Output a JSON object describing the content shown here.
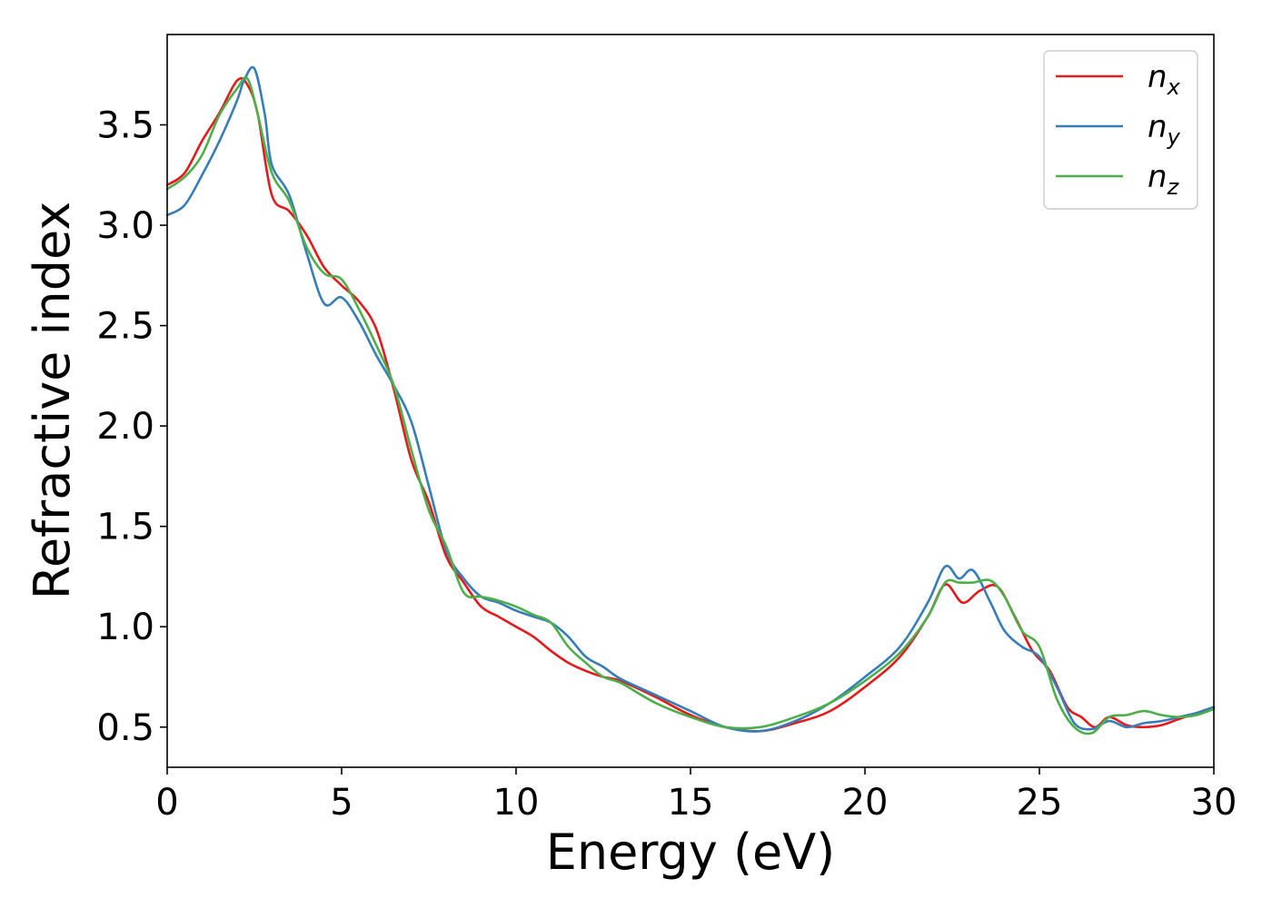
{
  "chart_data": {
    "type": "line",
    "title": "",
    "xlabel": "Energy (eV)",
    "ylabel": "Refractive index",
    "xlim": [
      0,
      30
    ],
    "ylim": [
      0.3,
      3.95
    ],
    "xticks": [
      0,
      5,
      10,
      15,
      20,
      25,
      30
    ],
    "xtick_labels": [
      "0",
      "5",
      "10",
      "15",
      "20",
      "25",
      "30"
    ],
    "yticks": [
      0.5,
      1.0,
      1.5,
      2.0,
      2.5,
      3.0,
      3.5
    ],
    "ytick_labels": [
      "0.5",
      "1.0",
      "1.5",
      "2.0",
      "2.5",
      "3.0",
      "3.5"
    ],
    "grid": false,
    "legend_position": "top-right",
    "series": [
      {
        "name": "n",
        "subscript": "x",
        "color": "#e41a1c",
        "x": [
          0,
          0.5,
          1.0,
          1.5,
          2.0,
          2.3,
          2.6,
          3.0,
          3.5,
          4.0,
          4.5,
          5.0,
          5.5,
          6.0,
          6.5,
          7.0,
          7.5,
          8.0,
          8.5,
          9.0,
          9.5,
          10.0,
          10.5,
          11.0,
          11.5,
          12.0,
          12.5,
          13.0,
          14.0,
          15.0,
          16.0,
          17.0,
          18.0,
          19.0,
          20.0,
          21.0,
          21.8,
          22.3,
          22.8,
          23.3,
          23.8,
          24.3,
          24.8,
          25.3,
          25.8,
          26.2,
          26.6,
          27.0,
          27.5,
          28.0,
          28.5,
          29.0,
          29.5,
          30.0
        ],
        "y": [
          3.2,
          3.26,
          3.42,
          3.56,
          3.72,
          3.7,
          3.55,
          3.15,
          3.07,
          2.95,
          2.79,
          2.7,
          2.62,
          2.48,
          2.18,
          1.83,
          1.62,
          1.35,
          1.22,
          1.1,
          1.05,
          1.0,
          0.95,
          0.88,
          0.82,
          0.78,
          0.75,
          0.73,
          0.65,
          0.56,
          0.5,
          0.48,
          0.52,
          0.58,
          0.7,
          0.85,
          1.05,
          1.21,
          1.12,
          1.18,
          1.2,
          1.05,
          0.88,
          0.78,
          0.6,
          0.55,
          0.5,
          0.55,
          0.51,
          0.5,
          0.51,
          0.54,
          0.57,
          0.6
        ]
      },
      {
        "name": "n",
        "subscript": "y",
        "color": "#377eb8",
        "x": [
          0,
          0.5,
          1.0,
          1.5,
          2.0,
          2.2,
          2.5,
          2.8,
          3.0,
          3.5,
          4.0,
          4.5,
          5.0,
          5.5,
          6.0,
          6.5,
          7.0,
          7.5,
          8.0,
          8.5,
          9.0,
          9.5,
          10.0,
          10.5,
          11.0,
          11.5,
          12.0,
          12.5,
          13.0,
          14.0,
          15.0,
          16.0,
          17.0,
          18.0,
          19.0,
          20.0,
          21.0,
          21.8,
          22.3,
          22.7,
          23.1,
          23.6,
          24.0,
          24.5,
          25.0,
          25.5,
          26.0,
          26.5,
          27.0,
          27.5,
          28.0,
          28.5,
          29.0,
          29.5,
          30.0
        ],
        "y": [
          3.05,
          3.1,
          3.25,
          3.42,
          3.62,
          3.72,
          3.78,
          3.55,
          3.3,
          3.15,
          2.86,
          2.61,
          2.64,
          2.52,
          2.35,
          2.2,
          2.02,
          1.7,
          1.38,
          1.24,
          1.15,
          1.12,
          1.08,
          1.05,
          1.02,
          0.95,
          0.85,
          0.8,
          0.74,
          0.66,
          0.58,
          0.5,
          0.48,
          0.53,
          0.62,
          0.75,
          0.9,
          1.12,
          1.3,
          1.24,
          1.28,
          1.12,
          0.98,
          0.9,
          0.85,
          0.7,
          0.52,
          0.49,
          0.53,
          0.5,
          0.52,
          0.53,
          0.55,
          0.57,
          0.6
        ]
      },
      {
        "name": "n",
        "subscript": "z",
        "color": "#4daf4a",
        "x": [
          0,
          0.5,
          1.0,
          1.5,
          2.0,
          2.3,
          2.6,
          3.0,
          3.5,
          4.0,
          4.5,
          5.0,
          5.5,
          6.0,
          6.5,
          7.0,
          7.5,
          8.0,
          8.5,
          9.0,
          9.5,
          10.0,
          10.5,
          11.0,
          11.5,
          12.0,
          12.5,
          13.0,
          14.0,
          15.0,
          16.0,
          17.0,
          18.0,
          19.0,
          20.0,
          21.0,
          21.8,
          22.3,
          22.7,
          23.1,
          23.6,
          24.0,
          24.5,
          25.0,
          25.5,
          26.0,
          26.5,
          27.0,
          27.5,
          28.0,
          28.5,
          29.0,
          29.5,
          30.0
        ],
        "y": [
          3.18,
          3.24,
          3.35,
          3.55,
          3.68,
          3.73,
          3.55,
          3.26,
          3.12,
          2.89,
          2.76,
          2.73,
          2.58,
          2.4,
          2.2,
          1.88,
          1.58,
          1.4,
          1.17,
          1.15,
          1.13,
          1.1,
          1.06,
          1.02,
          0.9,
          0.82,
          0.75,
          0.72,
          0.62,
          0.55,
          0.5,
          0.5,
          0.55,
          0.62,
          0.73,
          0.87,
          1.05,
          1.22,
          1.22,
          1.22,
          1.23,
          1.15,
          0.98,
          0.9,
          0.64,
          0.5,
          0.47,
          0.55,
          0.56,
          0.58,
          0.56,
          0.55,
          0.56,
          0.59
        ]
      }
    ]
  }
}
